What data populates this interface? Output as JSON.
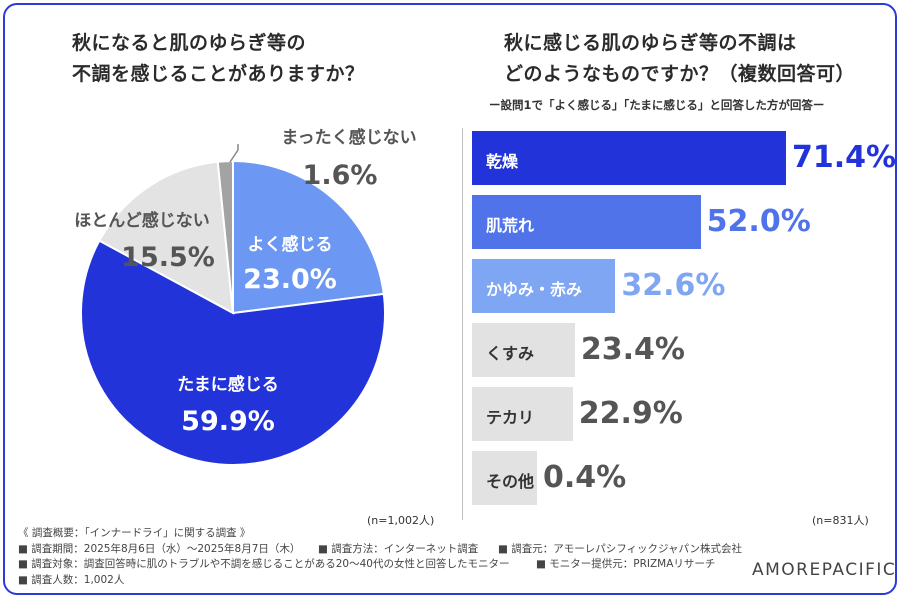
{
  "left": {
    "title_line1": "秋になると肌のゆらぎ等の",
    "title_line2": "不調を感じることがありますか？",
    "n_note": "(n=1,002人)"
  },
  "right": {
    "title_line1": "秋に感じる肌のゆらぎ等の不調は",
    "title_line2": "どのようなものですか？（複数回答可）",
    "subtitle": "ー設問1で「よく感じる」「たまに感じる」と回答した方が回答ー",
    "n_note": "(n=831人)"
  },
  "chart_data": [
    {
      "type": "pie",
      "title": "秋になると肌のゆらぎ等の不調を感じることがありますか？",
      "slices": [
        {
          "label": "よく感じる",
          "value": 23.0,
          "display": "23.0%",
          "color": "#6c97f2"
        },
        {
          "label": "たまに感じる",
          "value": 59.9,
          "display": "59.9%",
          "color": "#2233d9"
        },
        {
          "label": "ほとんど感じない",
          "value": 15.5,
          "display": "15.5%",
          "color": "#e3e3e3"
        },
        {
          "label": "まったく感じない",
          "value": 1.6,
          "display": "1.6%",
          "color": "#a3a3a3"
        }
      ]
    },
    {
      "type": "bar",
      "orientation": "horizontal",
      "title": "秋に感じる肌のゆらぎ等の不調はどのようなものですか？（複数回答可）",
      "categories": [
        "乾燥",
        "肌荒れ",
        "かゆみ・赤み",
        "くすみ",
        "テカリ",
        "その他"
      ],
      "values": [
        71.4,
        52.0,
        32.6,
        23.4,
        22.9,
        0.4
      ],
      "display": [
        "71.4%",
        "52.0%",
        "32.6%",
        "23.4%",
        "22.9%",
        "0.4%"
      ],
      "colors": [
        "#2233d9",
        "#5073ea",
        "#7fa6f3",
        "#e2e2e2",
        "#e2e2e2",
        "#e2e2e2"
      ],
      "value_colors": [
        "#2233d9",
        "#5073ea",
        "#7fa6f3",
        "#555555",
        "#555555",
        "#555555"
      ],
      "label_colors": [
        "#ffffff",
        "#ffffff",
        "#ffffff",
        "#333333",
        "#333333",
        "#333333"
      ]
    }
  ],
  "footer": {
    "lines": [
      [
        "《 調査概要：「インナードライ」に関する調査 》"
      ],
      [
        "■ 調査期間：2025年8月6日（水）〜2025年8月7日（木）",
        "■ 調査方法：インターネット調査",
        "■ 調査元：アモーレパシフィックジャパン株式会社"
      ],
      [
        "■ 調査対象：調査回答時に肌のトラブルや不調を感じることがある20〜40代の女性と回答したモニター",
        "■ モニター提供元：PRIZMAリサーチ"
      ],
      [
        "■ 調査人数：1,002人"
      ]
    ],
    "logo": "AMOREPACIFIC"
  }
}
